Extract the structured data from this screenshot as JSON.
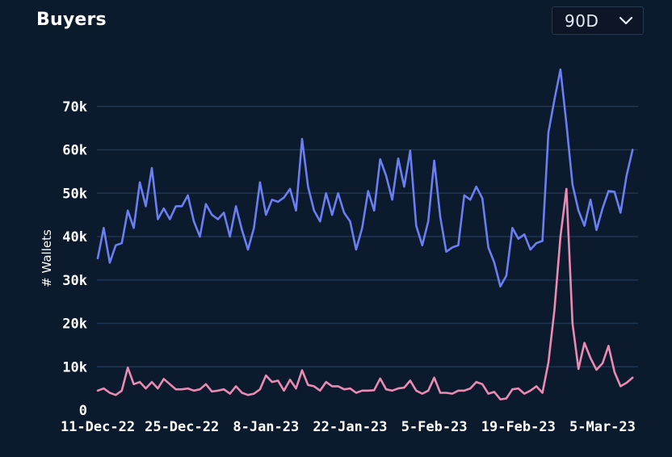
{
  "header": {
    "title": "Buyers",
    "range_value": "90D"
  },
  "icons": {
    "range_chevron": "chevron-down-icon"
  },
  "colors": {
    "background": "#0b1a2c",
    "grid": "#1f3550",
    "series_blue": "#6b7ff2",
    "series_pink": "#ea8bb5"
  },
  "chart_data": {
    "type": "line",
    "title": "Buyers",
    "ylabel": "# Wallets",
    "xlabel": "",
    "ylim": [
      0,
      80000
    ],
    "yticks": [
      0,
      10000,
      20000,
      30000,
      40000,
      50000,
      60000,
      70000
    ],
    "ytick_labels": [
      "0",
      "10k",
      "20k",
      "30k",
      "40k",
      "50k",
      "60k",
      "70k"
    ],
    "x_start": "2022-12-11",
    "xticks": [
      "2022-12-11",
      "2022-12-25",
      "2023-01-08",
      "2023-01-22",
      "2023-02-05",
      "2023-02-19",
      "2023-03-05"
    ],
    "xtick_labels": [
      "11-Dec-22",
      "25-Dec-22",
      "8-Jan-23",
      "22-Jan-23",
      "5-Feb-23",
      "19-Feb-23",
      "5-Mar-23"
    ],
    "grid": true,
    "legend": "none",
    "series": [
      {
        "color": "#6b7ff2",
        "values": [
          35000,
          42000,
          34000,
          38000,
          38500,
          46000,
          42000,
          52500,
          47000,
          55800,
          44000,
          46500,
          44000,
          47000,
          47000,
          49500,
          43500,
          40000,
          47500,
          45000,
          44000,
          45500,
          40000,
          47000,
          41500,
          37000,
          42000,
          52500,
          45000,
          48500,
          48000,
          49000,
          51000,
          46000,
          62500,
          51500,
          46000,
          43500,
          50000,
          45000,
          50000,
          45500,
          43500,
          37000,
          42000,
          50500,
          46000,
          57800,
          54000,
          48500,
          58000,
          51500,
          59800,
          42500,
          38000,
          43500,
          57500,
          44500,
          36500,
          37500,
          38000,
          49500,
          48500,
          51500,
          48800,
          37500,
          34000,
          28500,
          31000,
          42000,
          39500,
          40500,
          37000,
          38500,
          39000,
          64000,
          71500,
          78500,
          66000,
          52000,
          46000,
          42500,
          48500,
          41500,
          46500,
          50500,
          50300,
          45500,
          54000,
          60000
        ]
      },
      {
        "color": "#ea8bb5",
        "values": [
          4500,
          5000,
          4000,
          3500,
          4500,
          9800,
          6000,
          6500,
          5000,
          6500,
          5000,
          7200,
          6000,
          4800,
          4800,
          5000,
          4500,
          4800,
          6000,
          4300,
          4500,
          4800,
          3800,
          5500,
          4000,
          3500,
          3800,
          4800,
          8000,
          6500,
          6800,
          4500,
          7000,
          5000,
          9200,
          5800,
          5500,
          4500,
          6500,
          5500,
          5500,
          4800,
          5000,
          4000,
          4500,
          4500,
          4600,
          7300,
          4800,
          4500,
          5000,
          5200,
          6800,
          4500,
          3800,
          4500,
          7500,
          4000,
          4000,
          3800,
          4500,
          4500,
          5000,
          6500,
          6000,
          3800,
          4200,
          2500,
          2700,
          4800,
          5000,
          3800,
          4500,
          5500,
          4000,
          11000,
          23000,
          40000,
          51000,
          20000,
          9500,
          15500,
          12000,
          9300,
          10800,
          14800,
          8800,
          5500,
          6300,
          7500
        ]
      }
    ]
  }
}
